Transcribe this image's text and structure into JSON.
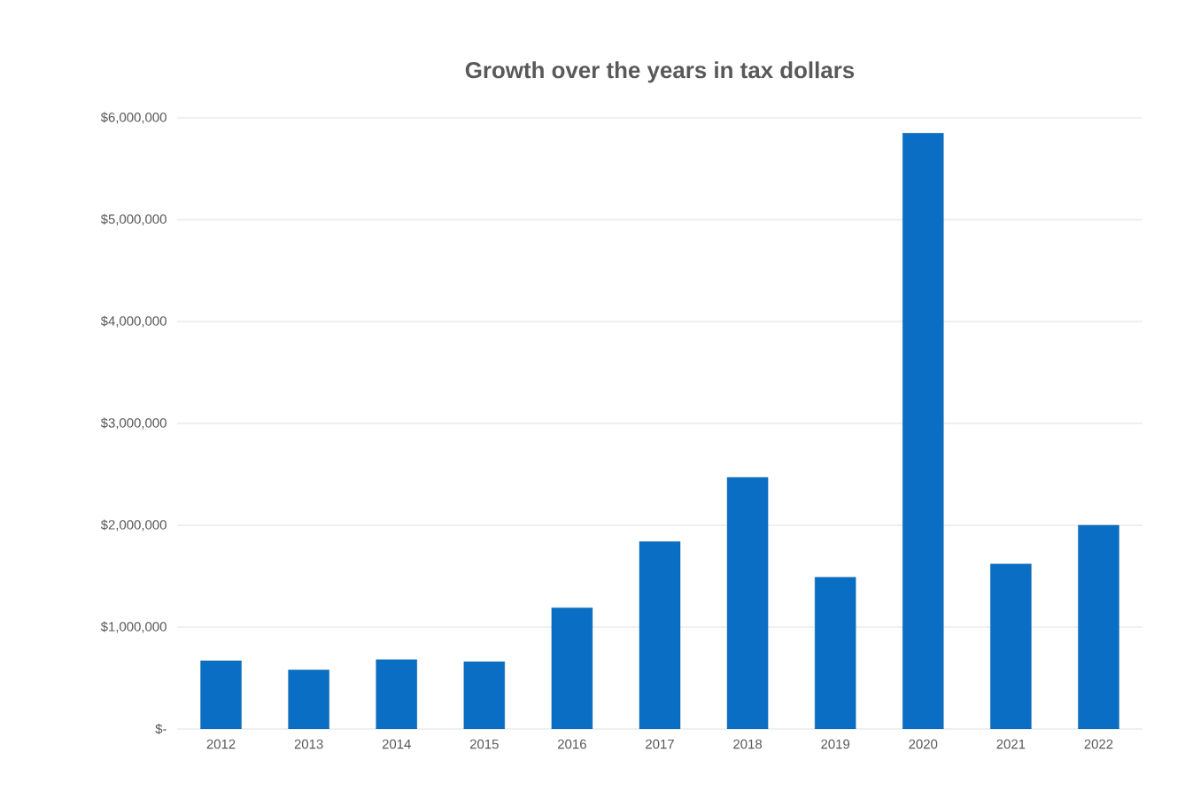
{
  "chart_data": {
    "type": "bar",
    "title": "Growth over the years in tax dollars",
    "categories": [
      "2012",
      "2013",
      "2014",
      "2015",
      "2016",
      "2017",
      "2018",
      "2019",
      "2020",
      "2021",
      "2022"
    ],
    "values": [
      670000,
      580000,
      680000,
      660000,
      1190000,
      1840000,
      2470000,
      1490000,
      5850000,
      1620000,
      2000000
    ],
    "color": "#0a6fc4",
    "ylim": [
      0,
      6000000
    ],
    "yticks": [
      {
        "value": 0,
        "label": "$-"
      },
      {
        "value": 1000000,
        "label": "$1,000,000"
      },
      {
        "value": 2000000,
        "label": "$2,000,000"
      },
      {
        "value": 3000000,
        "label": "$3,000,000"
      },
      {
        "value": 4000000,
        "label": "$4,000,000"
      },
      {
        "value": 5000000,
        "label": "$5,000,000"
      },
      {
        "value": 6000000,
        "label": "$6,000,000"
      }
    ],
    "grid": "y"
  }
}
